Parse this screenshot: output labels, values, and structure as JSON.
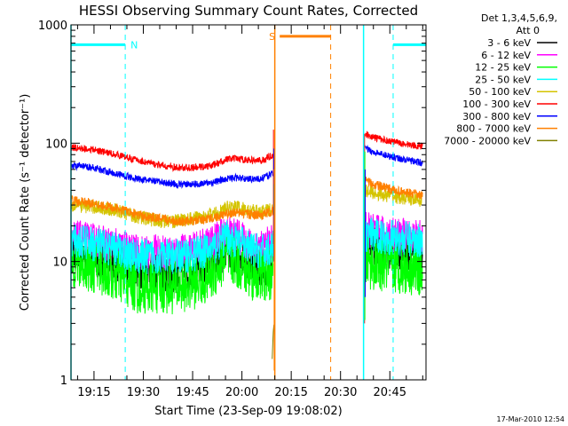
{
  "chart_data": {
    "type": "line",
    "title": "HESSI Observing Summary Count Rates, Corrected",
    "xlabel": "Start Time (23-Sep-09 19:08:02)",
    "ylabel": "Corrected Count Rate (s⁻¹ detector⁻¹)",
    "footer": "17-Mar-2010 12:54",
    "y_scale": "log",
    "ylim": [
      1,
      1000
    ],
    "y_ticks": [
      {
        "value": 1,
        "label": "1"
      },
      {
        "value": 10,
        "label": "10"
      },
      {
        "value": 100,
        "label": "100"
      },
      {
        "value": 1000,
        "label": "1000"
      }
    ],
    "x_ticks_minutes": [
      15,
      30,
      45,
      60,
      75,
      90,
      105
    ],
    "x_tick_labels": [
      "19:15",
      "19:30",
      "19:45",
      "20:00",
      "20:15",
      "20:30",
      "20:45"
    ],
    "xlim_minutes": [
      8,
      116
    ],
    "legend": {
      "title_lines": [
        "Det 1,3,4,5,6,9,",
        "Att 0"
      ],
      "placement": "right"
    },
    "flags": [
      {
        "label": "N",
        "color": "#00ffff",
        "bars": [
          [
            8,
            24.5
          ],
          [
            106,
            116
          ]
        ],
        "y": 680,
        "dashed_at": [
          24.5,
          106
        ],
        "solid_at": [
          8,
          97
        ]
      },
      {
        "label": "S",
        "color": "#ff8000",
        "bars": [
          [
            71.5,
            87
          ]
        ],
        "y": 800,
        "dashed_at": [
          87
        ],
        "solid_at": [
          70
        ]
      }
    ],
    "gap_minutes": [
      70,
      97
    ],
    "series": [
      {
        "name": "3 - 6 keV",
        "color": "#000000",
        "noise": 0.35,
        "segments": [
          {
            "x": [
              8,
              15,
              22,
              28,
              35,
              40,
              45,
              50,
              53,
              55,
              58,
              62,
              66,
              69.5
            ],
            "y": [
              12,
              11,
              10,
              9,
              8,
              8,
              8.5,
              9.5,
              11,
              13,
              12,
              10,
              9,
              10
            ]
          },
          {
            "x": [
              97.5,
              100,
              105,
              110,
              115
            ],
            "y": [
              15,
              14,
              13,
              12.5,
              12
            ]
          }
        ]
      },
      {
        "name": "6 - 12 keV",
        "color": "#ff00ff",
        "noise": 0.3,
        "segments": [
          {
            "x": [
              8,
              15,
              22,
              28,
              35,
              40,
              45,
              50,
              53,
              55,
              58,
              62,
              66,
              69.5
            ],
            "y": [
              16,
              15,
              13.5,
              12,
              12,
              12,
              12.5,
              14,
              16,
              18,
              17,
              14,
              13,
              15
            ]
          },
          {
            "x": [
              97.5,
              100,
              105,
              110,
              115
            ],
            "y": [
              19,
              18,
              17,
              16.5,
              16
            ]
          }
        ]
      },
      {
        "name": "12 - 25 keV",
        "color": "#00ff00",
        "noise": 0.45,
        "segments": [
          {
            "x": [
              8,
              15,
              22,
              28,
              35,
              40,
              45,
              50,
              53,
              55,
              58,
              62,
              66,
              69.5
            ],
            "y": [
              10,
              9,
              7.5,
              6,
              6,
              6,
              6.5,
              7.5,
              9,
              11,
              10,
              8,
              7.5,
              8
            ]
          },
          {
            "x": [
              97.5,
              100,
              105,
              110,
              115
            ],
            "y": [
              10,
              9.5,
              9,
              8.8,
              8.5
            ]
          }
        ]
      },
      {
        "name": "25 - 50 keV",
        "color": "#00ffff",
        "noise": 0.3,
        "segments": [
          {
            "x": [
              8,
              15,
              22,
              28,
              35,
              40,
              45,
              50,
              53,
              55,
              58,
              62,
              66,
              69.5
            ],
            "y": [
              15,
              14,
              12.5,
              11,
              11,
              11,
              11.5,
              12.5,
              14,
              16,
              15,
              13,
              12,
              13
            ]
          },
          {
            "x": [
              97.5,
              100,
              105,
              110,
              115
            ],
            "y": [
              17,
              16.5,
              16,
              15.5,
              15
            ]
          }
        ]
      },
      {
        "name": "50 - 100 keV",
        "color": "#d4c400",
        "noise": 0.12,
        "segments": [
          {
            "x": [
              8,
              15,
              22,
              28,
              35,
              40,
              45,
              50,
              53,
              55,
              58,
              62,
              66,
              69.5
            ],
            "y": [
              30,
              29,
              27,
              24,
              22,
              22,
              23,
              24.5,
              26,
              28,
              29,
              27,
              26,
              28
            ]
          },
          {
            "x": [
              97.5,
              100,
              105,
              110,
              115
            ],
            "y": [
              40,
              38,
              36,
              34,
              33
            ]
          }
        ]
      },
      {
        "name": "100 - 300 keV",
        "color": "#ff0000",
        "noise": 0.06,
        "segments": [
          {
            "x": [
              8,
              15,
              22,
              28,
              35,
              40,
              45,
              50,
              53,
              55,
              58,
              62,
              66,
              69.5
            ],
            "y": [
              92,
              88,
              80,
              72,
              65,
              62,
              62,
              64,
              68,
              73,
              74,
              72,
              71,
              80
            ]
          },
          {
            "x": [
              97.5,
              100,
              105,
              110,
              115
            ],
            "y": [
              120,
              112,
              104,
              98,
              94
            ]
          }
        ]
      },
      {
        "name": "300 - 800 keV",
        "color": "#0000ff",
        "noise": 0.06,
        "segments": [
          {
            "x": [
              8,
              15,
              22,
              28,
              35,
              40,
              45,
              50,
              53,
              55,
              58,
              62,
              66,
              69.5
            ],
            "y": [
              65,
              62,
              55,
              50,
              47,
              45,
              45,
              46,
              48,
              50,
              51,
              50,
              50,
              56
            ]
          },
          {
            "x": [
              97.5,
              100,
              105,
              110,
              115
            ],
            "y": [
              90,
              84,
              78,
              72,
              68
            ]
          }
        ]
      },
      {
        "name": "800 - 7000 keV",
        "color": "#ff8000",
        "noise": 0.08,
        "segments": [
          {
            "x": [
              8,
              15,
              22,
              28,
              35,
              40,
              45,
              50,
              53,
              55,
              58,
              62,
              66,
              69.5
            ],
            "y": [
              33,
              31,
              28,
              25,
              23,
              22,
              22,
              23,
              24,
              25,
              26,
              25,
              24.5,
              27
            ]
          },
          {
            "x": [
              97.5,
              100,
              105,
              110,
              115
            ],
            "y": [
              48,
              45,
              41,
              38,
              36
            ]
          }
        ]
      },
      {
        "name": "7000 - 20000 keV",
        "color": "#808000",
        "noise": 0.0,
        "segments": [
          {
            "x": [
              69.2,
              69.5,
              69.8
            ],
            "y": [
              1.5,
              2.5,
              3
            ]
          }
        ]
      }
    ]
  }
}
